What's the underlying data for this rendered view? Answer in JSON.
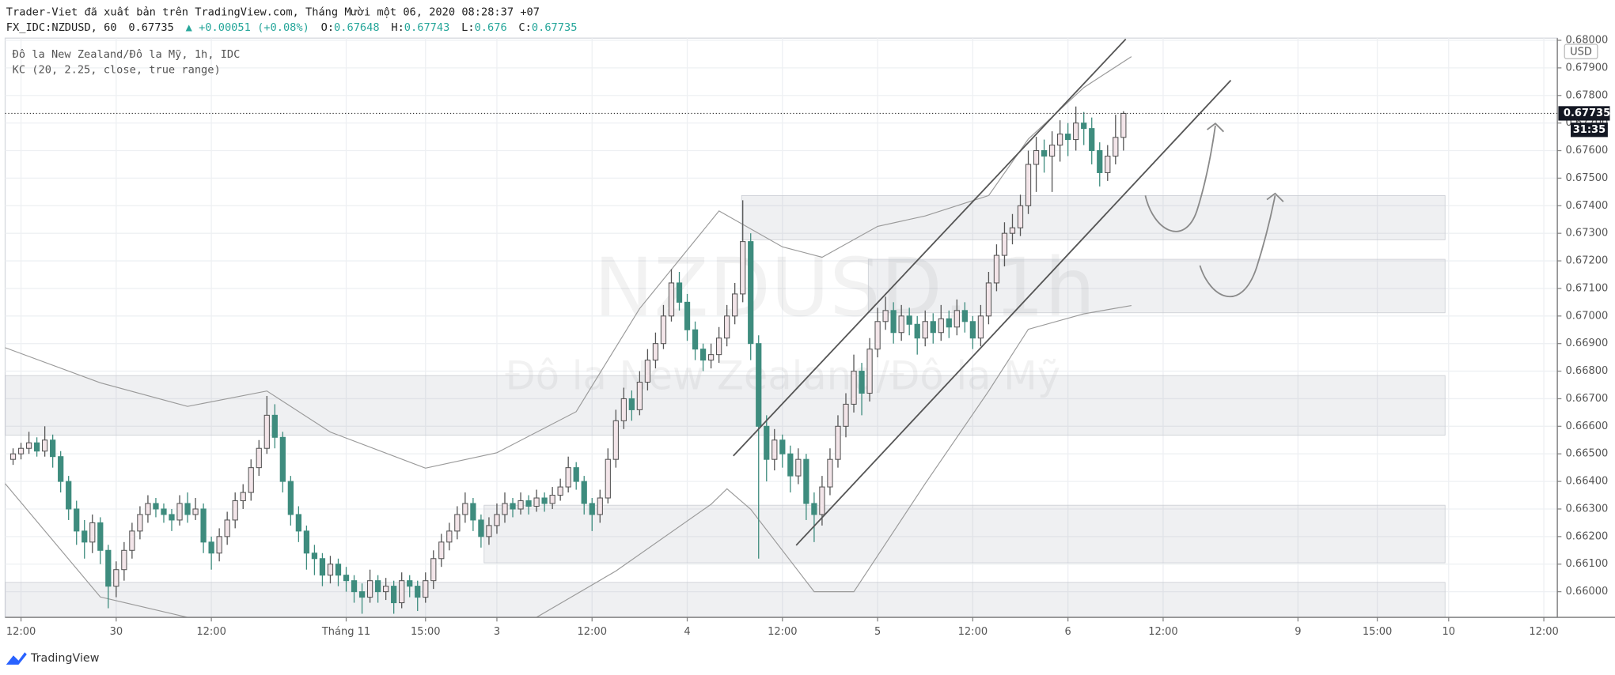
{
  "header": {
    "published": "Trader-Viet đã xuất bản trên TradingView.com, Tháng Mười một 06, 2020 08:28:37 +07",
    "symbol": "FX_IDC:NZDUSD, 60",
    "change": "▲ +0.00051 (+0.08%)",
    "ohlc_labels": [
      "O:",
      "H:",
      "L:",
      "C:"
    ]
  },
  "footer": {
    "brand": "TradingView"
  },
  "chart_data": {
    "type": "candlestick",
    "legend": [
      "Đô la New Zealand/Đô la Mỹ, 1h, IDC",
      "KC (20, 2.25, close, true range)"
    ],
    "watermark": [
      "NZDUSD, 1h",
      "Đô la New Zealand/Đô la Mỹ"
    ],
    "currency": "USD",
    "countdown": "31:35",
    "up_color": "#f3e5e9",
    "down_color": "#3e8c7e",
    "band_color": "#9a9a9a",
    "grid": true,
    "xlim": [
      -1,
      194.7
    ],
    "xticks": [
      {
        "value": 1,
        "label": "12:00"
      },
      {
        "value": 13,
        "label": "30"
      },
      {
        "value": 25,
        "label": "12:00"
      },
      {
        "value": 42,
        "label": "Tháng 11"
      },
      {
        "value": 52,
        "label": "15:00"
      },
      {
        "value": 61,
        "label": "3"
      },
      {
        "value": 73,
        "label": "12:00"
      },
      {
        "value": 85,
        "label": "4"
      },
      {
        "value": 97,
        "label": "12:00"
      },
      {
        "value": 109,
        "label": "5"
      },
      {
        "value": 121,
        "label": "12:00"
      },
      {
        "value": 133,
        "label": "6"
      },
      {
        "value": 145,
        "label": "12:00"
      },
      {
        "value": 162,
        "label": "9"
      },
      {
        "value": 172,
        "label": "15:00"
      },
      {
        "value": 181,
        "label": "10"
      },
      {
        "value": 193,
        "label": "12:00"
      }
    ],
    "ylim": [
      0.65907,
      0.68008
    ],
    "yticks": [
      {
        "value": 0.66,
        "label": "0.66000"
      },
      {
        "value": 0.661,
        "label": "0.66100"
      },
      {
        "value": 0.662,
        "label": "0.66200"
      },
      {
        "value": 0.663,
        "label": "0.66300"
      },
      {
        "value": 0.664,
        "label": "0.66400"
      },
      {
        "value": 0.665,
        "label": "0.66500"
      },
      {
        "value": 0.666,
        "label": "0.66600"
      },
      {
        "value": 0.667,
        "label": "0.66700"
      },
      {
        "value": 0.668,
        "label": "0.66800"
      },
      {
        "value": 0.669,
        "label": "0.66900"
      },
      {
        "value": 0.67,
        "label": "0.67000"
      },
      {
        "value": 0.671,
        "label": "0.67100"
      },
      {
        "value": 0.672,
        "label": "0.67200"
      },
      {
        "value": 0.673,
        "label": "0.67300"
      },
      {
        "value": 0.674,
        "label": "0.67400"
      },
      {
        "value": 0.675,
        "label": "0.67500"
      },
      {
        "value": 0.676,
        "label": "0.67600"
      },
      {
        "value": 0.677,
        "label": "0.67700"
      },
      {
        "value": 0.678,
        "label": "0.67800"
      },
      {
        "value": 0.679,
        "label": "0.67900"
      },
      {
        "value": 0.68,
        "label": "0.68000"
      }
    ],
    "kc_upper": {
      "x": [
        -1,
        11,
        22,
        32,
        40,
        52,
        61,
        71,
        79,
        89,
        97,
        102,
        109,
        115,
        123,
        128,
        135,
        141
      ],
      "values": [
        0.66885,
        0.66758,
        0.66672,
        0.66728,
        0.66579,
        0.66448,
        0.66504,
        0.66653,
        0.67027,
        0.67381,
        0.67251,
        0.67213,
        0.67325,
        0.67363,
        0.67437,
        0.67642,
        0.67829,
        0.67941
      ]
    },
    "kc_lower": {
      "x": [
        -1,
        11,
        22,
        37,
        52,
        66,
        76,
        88,
        90,
        93,
        101,
        106,
        115,
        123,
        128,
        135,
        141
      ],
      "values": [
        0.66392,
        0.65981,
        0.65907,
        0.65907,
        0.65907,
        0.65907,
        0.66075,
        0.66317,
        0.66373,
        0.66299,
        0.66,
        0.66,
        0.66392,
        0.66728,
        0.66952,
        0.67008,
        0.67038
      ]
    },
    "ohlc": [
      [
        0.6648,
        0.6652,
        0.6646,
        0.665
      ],
      [
        0.665,
        0.6654,
        0.6648,
        0.6652
      ],
      [
        0.6652,
        0.6658,
        0.665,
        0.6654
      ],
      [
        0.6654,
        0.6656,
        0.6649,
        0.6651
      ],
      [
        0.6651,
        0.666,
        0.6649,
        0.6655
      ],
      [
        0.6655,
        0.6657,
        0.6645,
        0.6649
      ],
      [
        0.6649,
        0.6651,
        0.6636,
        0.664
      ],
      [
        0.664,
        0.6642,
        0.6626,
        0.663
      ],
      [
        0.663,
        0.6633,
        0.6617,
        0.6622
      ],
      [
        0.6622,
        0.6626,
        0.6612,
        0.6618
      ],
      [
        0.6618,
        0.6628,
        0.6614,
        0.6625
      ],
      [
        0.6625,
        0.6627,
        0.661,
        0.6615
      ],
      [
        0.6615,
        0.6617,
        0.6594,
        0.6602
      ],
      [
        0.6602,
        0.6611,
        0.6598,
        0.6608
      ],
      [
        0.6608,
        0.6618,
        0.6604,
        0.6615
      ],
      [
        0.6615,
        0.6625,
        0.6612,
        0.6622
      ],
      [
        0.6622,
        0.6631,
        0.6619,
        0.6628
      ],
      [
        0.6628,
        0.6635,
        0.6625,
        0.6632
      ],
      [
        0.6632,
        0.6634,
        0.6627,
        0.663
      ],
      [
        0.663,
        0.6632,
        0.6625,
        0.6628
      ],
      [
        0.6628,
        0.663,
        0.6622,
        0.6626
      ],
      [
        0.6626,
        0.6635,
        0.6624,
        0.6632
      ],
      [
        0.6632,
        0.6636,
        0.6625,
        0.6628
      ],
      [
        0.6628,
        0.6634,
        0.6626,
        0.663
      ],
      [
        0.663,
        0.6632,
        0.6614,
        0.6618
      ],
      [
        0.6618,
        0.662,
        0.6608,
        0.6614
      ],
      [
        0.6614,
        0.6623,
        0.6611,
        0.662
      ],
      [
        0.662,
        0.6629,
        0.6617,
        0.6626
      ],
      [
        0.6626,
        0.6636,
        0.6623,
        0.6633
      ],
      [
        0.6633,
        0.6639,
        0.663,
        0.6636
      ],
      [
        0.6636,
        0.6648,
        0.6633,
        0.6645
      ],
      [
        0.6645,
        0.6655,
        0.6642,
        0.6652
      ],
      [
        0.6652,
        0.6671,
        0.665,
        0.6664
      ],
      [
        0.6664,
        0.6668,
        0.6652,
        0.6656
      ],
      [
        0.6656,
        0.6658,
        0.6636,
        0.664
      ],
      [
        0.664,
        0.6642,
        0.6624,
        0.6628
      ],
      [
        0.6628,
        0.6631,
        0.6618,
        0.6622
      ],
      [
        0.6622,
        0.6624,
        0.6608,
        0.6614
      ],
      [
        0.6614,
        0.6617,
        0.6606,
        0.6612
      ],
      [
        0.6612,
        0.6614,
        0.6602,
        0.6606
      ],
      [
        0.6606,
        0.6613,
        0.6603,
        0.661
      ],
      [
        0.661,
        0.6612,
        0.6602,
        0.6606
      ],
      [
        0.6606,
        0.6609,
        0.66,
        0.6604
      ],
      [
        0.6604,
        0.6606,
        0.6596,
        0.66
      ],
      [
        0.66,
        0.6603,
        0.6592,
        0.6598
      ],
      [
        0.6598,
        0.6608,
        0.6596,
        0.6604
      ],
      [
        0.6604,
        0.6606,
        0.6596,
        0.66
      ],
      [
        0.66,
        0.6605,
        0.6597,
        0.6602
      ],
      [
        0.6602,
        0.6604,
        0.6592,
        0.6596
      ],
      [
        0.6596,
        0.6607,
        0.6594,
        0.6604
      ],
      [
        0.6604,
        0.6606,
        0.6598,
        0.6602
      ],
      [
        0.6602,
        0.6604,
        0.6593,
        0.6598
      ],
      [
        0.6598,
        0.6607,
        0.6596,
        0.6604
      ],
      [
        0.6604,
        0.6615,
        0.6601,
        0.6612
      ],
      [
        0.6612,
        0.6621,
        0.6609,
        0.6618
      ],
      [
        0.6618,
        0.6625,
        0.6615,
        0.6622
      ],
      [
        0.6622,
        0.6631,
        0.6619,
        0.6628
      ],
      [
        0.6628,
        0.6636,
        0.6625,
        0.6632
      ],
      [
        0.6632,
        0.6634,
        0.6622,
        0.6626
      ],
      [
        0.6626,
        0.6628,
        0.6616,
        0.662
      ],
      [
        0.662,
        0.6627,
        0.6617,
        0.6624
      ],
      [
        0.6624,
        0.6632,
        0.6621,
        0.6628
      ],
      [
        0.6628,
        0.6636,
        0.6625,
        0.6632
      ],
      [
        0.6632,
        0.6634,
        0.6627,
        0.663
      ],
      [
        0.663,
        0.6636,
        0.6628,
        0.6633
      ],
      [
        0.6633,
        0.6635,
        0.6628,
        0.6631
      ],
      [
        0.6631,
        0.6637,
        0.6629,
        0.6634
      ],
      [
        0.6634,
        0.6636,
        0.6629,
        0.6632
      ],
      [
        0.6632,
        0.6638,
        0.663,
        0.6635
      ],
      [
        0.6635,
        0.6641,
        0.6633,
        0.6638
      ],
      [
        0.6638,
        0.6649,
        0.6636,
        0.6645
      ],
      [
        0.6645,
        0.6647,
        0.6637,
        0.664
      ],
      [
        0.664,
        0.6642,
        0.6628,
        0.6632
      ],
      [
        0.6632,
        0.6634,
        0.6622,
        0.6628
      ],
      [
        0.6628,
        0.6637,
        0.6625,
        0.6634
      ],
      [
        0.6634,
        0.6652,
        0.6632,
        0.6648
      ],
      [
        0.6648,
        0.6666,
        0.6645,
        0.6662
      ],
      [
        0.6662,
        0.6674,
        0.6659,
        0.667
      ],
      [
        0.667,
        0.6673,
        0.6662,
        0.6666
      ],
      [
        0.6666,
        0.668,
        0.6664,
        0.6676
      ],
      [
        0.6676,
        0.6688,
        0.6673,
        0.6684
      ],
      [
        0.6684,
        0.6694,
        0.6681,
        0.669
      ],
      [
        0.669,
        0.6704,
        0.6688,
        0.67
      ],
      [
        0.67,
        0.6717,
        0.6698,
        0.6712
      ],
      [
        0.6712,
        0.6716,
        0.6702,
        0.6705
      ],
      [
        0.6705,
        0.6708,
        0.6691,
        0.6695
      ],
      [
        0.6695,
        0.6698,
        0.6684,
        0.6688
      ],
      [
        0.6688,
        0.669,
        0.668,
        0.6684
      ],
      [
        0.6684,
        0.669,
        0.6681,
        0.6686
      ],
      [
        0.6686,
        0.6696,
        0.6683,
        0.6692
      ],
      [
        0.6692,
        0.6704,
        0.6689,
        0.67
      ],
      [
        0.67,
        0.6712,
        0.6697,
        0.6708
      ],
      [
        0.6708,
        0.6742,
        0.6705,
        0.6727
      ],
      [
        0.6727,
        0.673,
        0.6684,
        0.669
      ],
      [
        0.669,
        0.6693,
        0.6612,
        0.666
      ],
      [
        0.666,
        0.6664,
        0.664,
        0.6648
      ],
      [
        0.6648,
        0.6659,
        0.6644,
        0.6655
      ],
      [
        0.6655,
        0.6657,
        0.6645,
        0.665
      ],
      [
        0.665,
        0.6653,
        0.6636,
        0.6642
      ],
      [
        0.6642,
        0.6652,
        0.6639,
        0.6648
      ],
      [
        0.6648,
        0.665,
        0.6626,
        0.6632
      ],
      [
        0.6632,
        0.6636,
        0.6618,
        0.6628
      ],
      [
        0.6628,
        0.6642,
        0.6624,
        0.6638
      ],
      [
        0.6638,
        0.6652,
        0.6635,
        0.6648
      ],
      [
        0.6648,
        0.6664,
        0.6645,
        0.666
      ],
      [
        0.666,
        0.6672,
        0.6656,
        0.6668
      ],
      [
        0.6668,
        0.6686,
        0.6665,
        0.668
      ],
      [
        0.668,
        0.6683,
        0.6664,
        0.6672
      ],
      [
        0.6672,
        0.6692,
        0.6669,
        0.6688
      ],
      [
        0.6688,
        0.6703,
        0.6685,
        0.6698
      ],
      [
        0.6698,
        0.6707,
        0.6695,
        0.6702
      ],
      [
        0.6702,
        0.6705,
        0.669,
        0.6694
      ],
      [
        0.6694,
        0.6704,
        0.6691,
        0.67
      ],
      [
        0.67,
        0.6703,
        0.6693,
        0.6697
      ],
      [
        0.6697,
        0.67,
        0.6686,
        0.6692
      ],
      [
        0.6692,
        0.6702,
        0.6689,
        0.6698
      ],
      [
        0.6698,
        0.6701,
        0.669,
        0.6694
      ],
      [
        0.6694,
        0.6704,
        0.6691,
        0.6699
      ],
      [
        0.6699,
        0.6702,
        0.6692,
        0.6696
      ],
      [
        0.6696,
        0.6706,
        0.6693,
        0.6702
      ],
      [
        0.6702,
        0.6705,
        0.6694,
        0.6698
      ],
      [
        0.6698,
        0.67,
        0.6688,
        0.6692
      ],
      [
        0.6692,
        0.6704,
        0.6689,
        0.67
      ],
      [
        0.67,
        0.6716,
        0.6697,
        0.6712
      ],
      [
        0.6712,
        0.6726,
        0.6709,
        0.6722
      ],
      [
        0.6722,
        0.6734,
        0.6718,
        0.673
      ],
      [
        0.673,
        0.6737,
        0.6726,
        0.6732
      ],
      [
        0.6732,
        0.6744,
        0.6729,
        0.674
      ],
      [
        0.674,
        0.676,
        0.6737,
        0.6755
      ],
      [
        0.6755,
        0.6765,
        0.6745,
        0.676
      ],
      [
        0.676,
        0.6764,
        0.6752,
        0.6758
      ],
      [
        0.6758,
        0.6767,
        0.6745,
        0.6762
      ],
      [
        0.6762,
        0.6771,
        0.6756,
        0.6766
      ],
      [
        0.6766,
        0.677,
        0.6758,
        0.6764
      ],
      [
        0.6764,
        0.6776,
        0.676,
        0.677
      ],
      [
        0.677,
        0.6774,
        0.6762,
        0.6768
      ],
      [
        0.6768,
        0.6772,
        0.6755,
        0.676
      ],
      [
        0.676,
        0.6763,
        0.6747,
        0.6752
      ],
      [
        0.6752,
        0.6762,
        0.6749,
        0.6758
      ],
      [
        0.6758,
        0.6773,
        0.6755,
        0.67648
      ],
      [
        0.67648,
        0.67743,
        0.676,
        0.67735
      ]
    ]
  }
}
